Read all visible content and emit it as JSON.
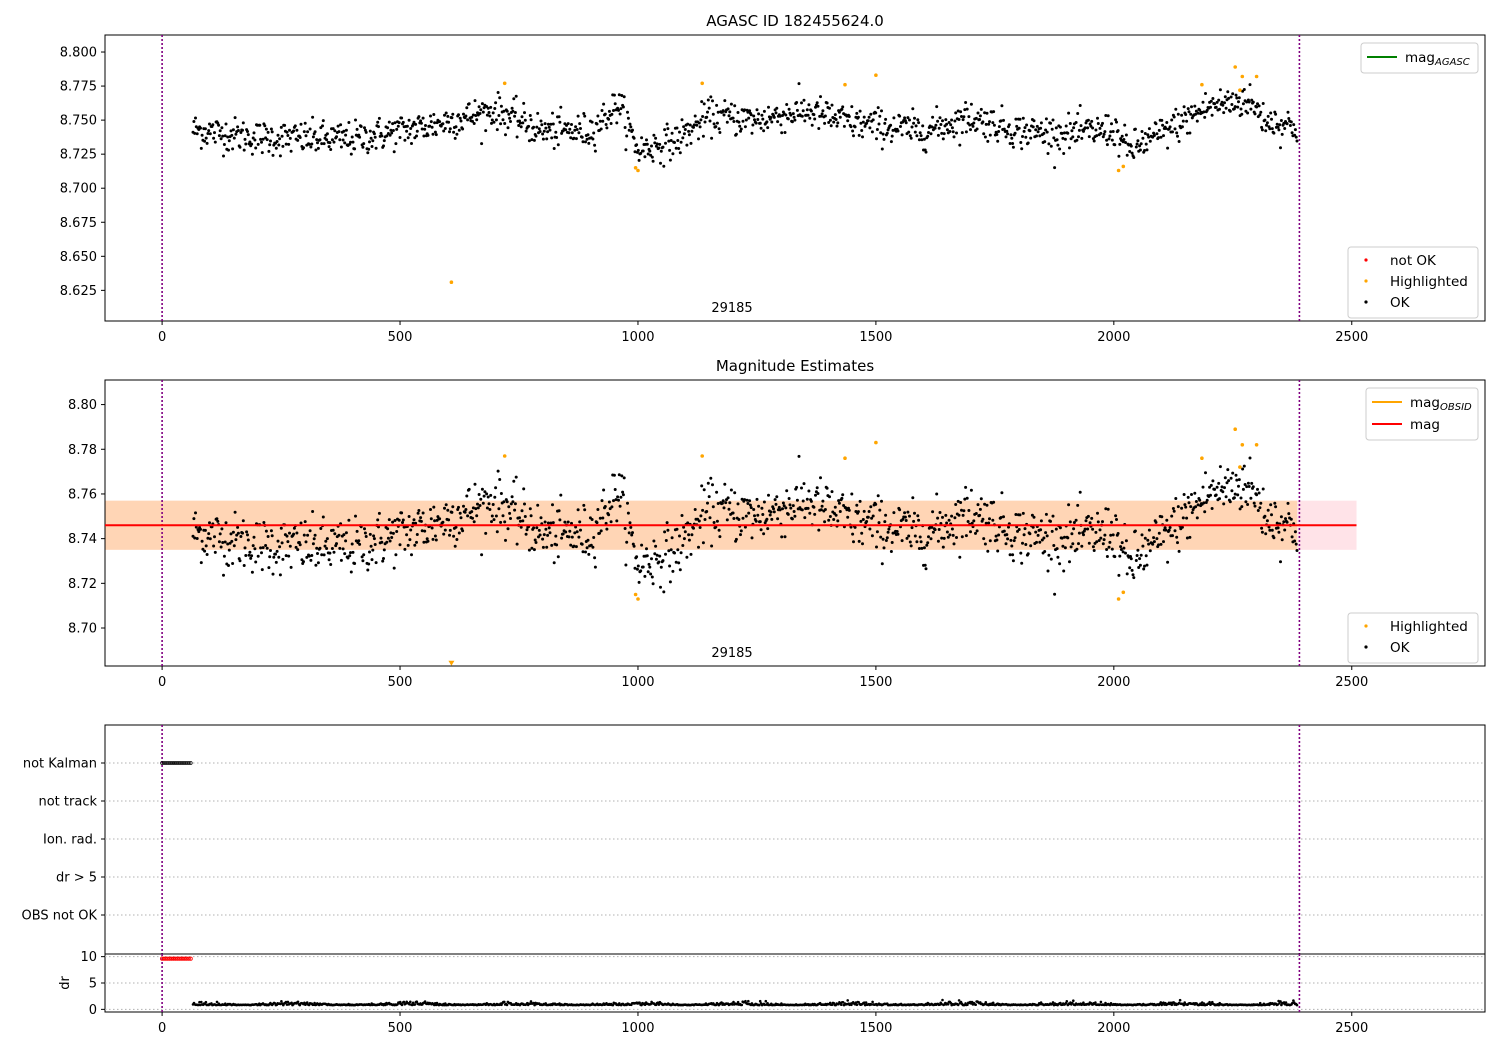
{
  "chart_data": [
    {
      "type": "scatter",
      "title": "AGASC ID 182455624.0",
      "xlabel": "",
      "ylabel": "",
      "xlim": [
        -120,
        2780
      ],
      "ylim": [
        8.6025,
        8.8125
      ],
      "xticks": [
        "0",
        "500",
        "1000",
        "1500",
        "2000",
        "2500"
      ],
      "yticks": [
        "8.625",
        "8.650",
        "8.675",
        "8.700",
        "8.725",
        "8.750",
        "8.775",
        "8.800"
      ],
      "obsid_label": "29185",
      "obsid_label_x": 1190,
      "vlines_x": [
        0,
        2390
      ],
      "legend_lines": [
        {
          "label_main": "mag",
          "label_sub": "AGASC",
          "color": "#008000"
        }
      ],
      "legend_points": [
        {
          "label": "not OK",
          "color": "#ff0000"
        },
        {
          "label": "Highlighted",
          "color": "#ffa500"
        },
        {
          "label": "OK",
          "color": "#000000"
        }
      ],
      "series": [
        {
          "name": "OK",
          "color": "#000000",
          "x_range": [
            65,
            2385
          ],
          "n": 1340,
          "trend": [
            [
              65,
              8.743
            ],
            [
              200,
              8.737
            ],
            [
              400,
              8.736
            ],
            [
              550,
              8.745
            ],
            [
              700,
              8.757
            ],
            [
              800,
              8.742
            ],
            [
              900,
              8.742
            ],
            [
              960,
              8.762
            ],
            [
              1000,
              8.728
            ],
            [
              1080,
              8.735
            ],
            [
              1150,
              8.753
            ],
            [
              1250,
              8.75
            ],
            [
              1350,
              8.757
            ],
            [
              1450,
              8.748
            ],
            [
              1600,
              8.742
            ],
            [
              1700,
              8.752
            ],
            [
              1800,
              8.742
            ],
            [
              1900,
              8.74
            ],
            [
              2000,
              8.743
            ],
            [
              2030,
              8.728
            ],
            [
              2100,
              8.74
            ],
            [
              2200,
              8.76
            ],
            [
              2280,
              8.765
            ],
            [
              2320,
              8.75
            ],
            [
              2385,
              8.745
            ]
          ],
          "scatter": 0.009
        },
        {
          "name": "Highlighted",
          "color": "#ffa500",
          "x": [
            608,
            720,
            995,
            1000,
            1135,
            1435,
            1500,
            2010,
            2020,
            2185,
            2255,
            2265,
            2270,
            2300
          ],
          "y": [
            8.631,
            8.777,
            8.715,
            8.713,
            8.777,
            8.776,
            8.783,
            8.713,
            8.716,
            8.776,
            8.789,
            8.772,
            8.782,
            8.782
          ]
        }
      ]
    },
    {
      "type": "scatter",
      "title": "Magnitude Estimates",
      "xlabel": "",
      "ylabel": "",
      "xlim": [
        -120,
        2780
      ],
      "ylim": [
        8.683,
        8.811
      ],
      "xticks": [
        "0",
        "500",
        "1000",
        "1500",
        "2000",
        "2500"
      ],
      "yticks": [
        "8.70",
        "8.72",
        "8.74",
        "8.76",
        "8.78",
        "8.80"
      ],
      "obsid_label": "29185",
      "obsid_label_x": 1190,
      "vlines_x": [
        0,
        2390
      ],
      "mag": 8.746,
      "mag_band": [
        8.735,
        8.757
      ],
      "band_x_range": [
        -120,
        2510
      ],
      "obsid_band_x_range": [
        65,
        2385
      ],
      "legend_lines": [
        {
          "label_main": "mag",
          "label_sub": "OBSID",
          "color": "#ffa500"
        },
        {
          "label_main": "mag",
          "label_sub": "",
          "color": "#ff0000"
        }
      ],
      "legend_points": [
        {
          "label": "Highlighted",
          "color": "#ffa500"
        },
        {
          "label": "OK",
          "color": "#000000"
        }
      ],
      "series": [
        {
          "name": "OK",
          "color": "#000000",
          "same_as_panel": 0
        },
        {
          "name": "Highlighted",
          "color": "#ffa500",
          "x": [
            720,
            995,
            1000,
            1135,
            1435,
            1500,
            2010,
            2020,
            2185,
            2255,
            2265,
            2270,
            2300
          ],
          "y": [
            8.777,
            8.715,
            8.713,
            8.777,
            8.776,
            8.783,
            8.713,
            8.716,
            8.776,
            8.789,
            8.772,
            8.782,
            8.782
          ]
        },
        {
          "name": "Highlighted",
          "color": "#ffa500",
          "marker": "down-triangle",
          "x": [
            608
          ],
          "y": [
            8.684
          ]
        }
      ]
    },
    {
      "type": "scatter",
      "title": "",
      "xlabel": "",
      "ylabel": "",
      "xlim": [
        -120,
        2780
      ],
      "vlines_x": [
        0,
        2390
      ],
      "categories": [
        "not Kalman",
        "not track",
        "Ion. rad.",
        "dr > 5",
        "OBS not OK"
      ],
      "series": [
        {
          "name": "not Kalman",
          "category": "not Kalman",
          "x_range": [
            0,
            60
          ],
          "n": 16,
          "marker": "open-circle"
        }
      ]
    },
    {
      "type": "scatter",
      "title": "",
      "xlabel": "",
      "ylabel": "dr",
      "xlim": [
        -120,
        2780
      ],
      "ylim": [
        -0.5,
        10.5
      ],
      "yticks": [
        "0",
        "5",
        "10"
      ],
      "xticks": [
        "0",
        "500",
        "1000",
        "1500",
        "2000",
        "2500"
      ],
      "vlines_x": [
        0,
        2390
      ],
      "series": [
        {
          "name": "dr > 5",
          "color": "#ff0000",
          "marker": "open-circle",
          "x_range": [
            0,
            60
          ],
          "y": 9.6,
          "n": 16
        },
        {
          "name": "dr",
          "color": "#000000",
          "x_range": [
            65,
            2385
          ],
          "mean": 0.8,
          "scatter": 0.35,
          "n": 1200
        }
      ]
    }
  ]
}
